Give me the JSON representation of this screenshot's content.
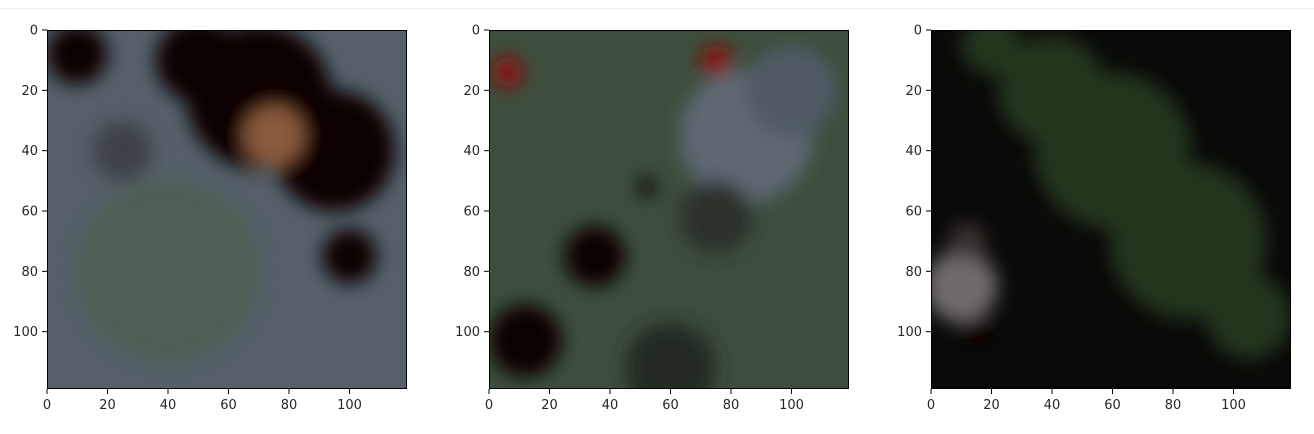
{
  "chart_data": [
    {
      "type": "heatmap",
      "kind": "raster image",
      "title": "",
      "xlabel": "",
      "ylabel": "",
      "xlim": [
        0,
        119
      ],
      "ylim": [
        119,
        0
      ],
      "xticks": [
        0,
        20,
        40,
        60,
        80,
        100
      ],
      "yticks": [
        0,
        20,
        40,
        60,
        80,
        100
      ],
      "xtick_labels": [
        "0",
        "20",
        "40",
        "60",
        "80",
        "100"
      ],
      "ytick_labels": [
        "0",
        "20",
        "40",
        "60",
        "80",
        "100"
      ],
      "grid": false,
      "base_color": "#55606a",
      "blobs": [
        {
          "cx": 70,
          "cy": 22,
          "r": 24,
          "color": "#0b0604"
        },
        {
          "cx": 95,
          "cy": 40,
          "r": 20,
          "color": "#0b0604"
        },
        {
          "cx": 50,
          "cy": 10,
          "r": 14,
          "color": "#0b0604"
        },
        {
          "cx": 10,
          "cy": 8,
          "r": 10,
          "color": "#0b0604"
        },
        {
          "cx": 100,
          "cy": 75,
          "r": 9,
          "color": "#0b0604"
        },
        {
          "cx": 75,
          "cy": 35,
          "r": 10,
          "color": "#8a5a3c"
        },
        {
          "cx": 40,
          "cy": 80,
          "r": 30,
          "color": "#4f5e52"
        },
        {
          "cx": 25,
          "cy": 40,
          "r": 10,
          "color": "#3e4348"
        }
      ]
    },
    {
      "type": "heatmap",
      "kind": "raster image",
      "title": "",
      "xlabel": "",
      "ylabel": "",
      "xlim": [
        0,
        119
      ],
      "ylim": [
        119,
        0
      ],
      "xticks": [
        0,
        20,
        40,
        60,
        80,
        100
      ],
      "yticks": [
        0,
        20,
        40,
        60,
        80,
        100
      ],
      "xtick_labels": [
        "0",
        "20",
        "40",
        "60",
        "80",
        "100"
      ],
      "ytick_labels": [
        "0",
        "20",
        "40",
        "60",
        "80",
        "100"
      ],
      "grid": false,
      "base_color": "#3d4e3c",
      "blobs": [
        {
          "cx": 85,
          "cy": 35,
          "r": 22,
          "color": "#5d6773"
        },
        {
          "cx": 100,
          "cy": 20,
          "r": 15,
          "color": "#505a66"
        },
        {
          "cx": 75,
          "cy": 62,
          "r": 12,
          "color": "#2b3029"
        },
        {
          "cx": 35,
          "cy": 75,
          "r": 10,
          "color": "#0b0604"
        },
        {
          "cx": 12,
          "cy": 103,
          "r": 12,
          "color": "#0b0604"
        },
        {
          "cx": 6,
          "cy": 14,
          "r": 5,
          "color": "#8a1111"
        },
        {
          "cx": 75,
          "cy": 10,
          "r": 5,
          "color": "#8a1111"
        },
        {
          "cx": 52,
          "cy": 52,
          "r": 3,
          "color": "#0b0604"
        },
        {
          "cx": 60,
          "cy": 112,
          "r": 15,
          "color": "#222a22"
        }
      ]
    },
    {
      "type": "heatmap",
      "kind": "raster image",
      "title": "",
      "xlabel": "",
      "ylabel": "",
      "xlim": [
        0,
        119
      ],
      "ylim": [
        119,
        0
      ],
      "xticks": [
        0,
        20,
        40,
        60,
        80,
        100
      ],
      "yticks": [
        0,
        20,
        40,
        60,
        80,
        100
      ],
      "xtick_labels": [
        "0",
        "20",
        "40",
        "60",
        "80",
        "100"
      ],
      "ytick_labels": [
        "0",
        "20",
        "40",
        "60",
        "80",
        "100"
      ],
      "grid": false,
      "base_color": "#0a0a08",
      "blobs": [
        {
          "cx": 60,
          "cy": 40,
          "r": 26,
          "color": "#22351f"
        },
        {
          "cx": 85,
          "cy": 70,
          "r": 26,
          "color": "#22351f"
        },
        {
          "cx": 40,
          "cy": 20,
          "r": 18,
          "color": "#22351f"
        },
        {
          "cx": 105,
          "cy": 95,
          "r": 14,
          "color": "#22351f"
        },
        {
          "cx": 20,
          "cy": 5,
          "r": 10,
          "color": "#22351f"
        },
        {
          "cx": 10,
          "cy": 85,
          "r": 12,
          "color": "#6e6a6a"
        },
        {
          "cx": 15,
          "cy": 100,
          "r": 5,
          "color": "#0b0604"
        },
        {
          "cx": 12,
          "cy": 70,
          "r": 6,
          "color": "#3a3230"
        }
      ]
    }
  ]
}
